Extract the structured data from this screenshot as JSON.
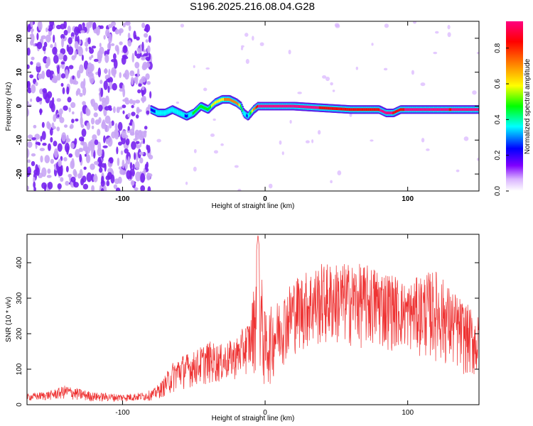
{
  "title": "S196.2025.216.08.04.G28",
  "chart_data": [
    {
      "type": "heatmap",
      "xlabel": "Height of straight line (km)",
      "ylabel": "Frequency (Hz)",
      "xlim": [
        -167,
        150
      ],
      "ylim": [
        -25,
        25
      ],
      "x_ticks": [
        -100,
        0,
        100
      ],
      "y_ticks": [
        -20,
        -10,
        0,
        10,
        20
      ],
      "colorbar": {
        "label": "Normalized spectral amplitude",
        "range": [
          0,
          0.95
        ],
        "ticks": [
          "0.0",
          "0.2",
          "0.4",
          "0.6",
          "0.8"
        ],
        "colors": [
          "#ffffff",
          "#d9b3ff",
          "#8000ff",
          "#0000ff",
          "#00ffff",
          "#00ff00",
          "#ffff00",
          "#ff8000",
          "#ff0000",
          "#ff0080"
        ]
      },
      "ridge": {
        "x": [
          -80,
          -75,
          -70,
          -65,
          -60,
          -55,
          -50,
          -45,
          -40,
          -35,
          -30,
          -25,
          -20,
          -17,
          -15,
          -12,
          -8,
          -5,
          0,
          10,
          20,
          40,
          60,
          75,
          80,
          85,
          90,
          95,
          100,
          110,
          120,
          130,
          140,
          150
        ],
        "y": [
          -1,
          -2,
          -2,
          -1,
          -2,
          -3,
          -2,
          0,
          -1,
          1,
          2,
          2,
          1,
          0,
          -2,
          -3,
          -1,
          0,
          0,
          0,
          0,
          -0.5,
          -1,
          -1,
          -1,
          -2,
          -2,
          -1,
          -1,
          -1,
          -1,
          -1,
          -1,
          -1
        ],
        "amplitude": [
          0.35,
          0.4,
          0.45,
          0.4,
          0.45,
          0.35,
          0.5,
          0.55,
          0.55,
          0.6,
          0.65,
          0.7,
          0.75,
          0.55,
          0.45,
          0.35,
          0.7,
          0.85,
          0.9,
          0.95,
          0.9,
          0.85,
          0.85,
          0.8,
          0.85,
          0.9,
          0.85,
          0.8,
          0.9,
          0.95,
          0.9,
          0.85,
          0.9,
          0.95
        ]
      }
    },
    {
      "type": "line",
      "xlabel": "Height of straight line (km)",
      "ylabel": "SNR (10 * v/v)",
      "xlim": [
        -167,
        150
      ],
      "ylim": [
        0,
        480
      ],
      "x_ticks": [
        -100,
        0,
        100
      ],
      "y_ticks": [
        0,
        100,
        200,
        300,
        400
      ],
      "series": [
        {
          "color": "#ee3333",
          "envelope_x": [
            -167,
            -150,
            -140,
            -130,
            -120,
            -100,
            -85,
            -78,
            -72,
            -65,
            -60,
            -50,
            -40,
            -30,
            -20,
            -10,
            -5,
            0,
            10,
            20,
            30,
            40,
            60,
            70,
            80,
            90,
            100,
            110,
            120,
            130,
            140,
            150
          ],
          "envelope_low": [
            10,
            12,
            15,
            10,
            8,
            8,
            10,
            12,
            20,
            30,
            40,
            50,
            55,
            60,
            70,
            90,
            80,
            30,
            100,
            140,
            150,
            160,
            160,
            155,
            150,
            150,
            150,
            130,
            120,
            100,
            80,
            60
          ],
          "envelope_high": [
            30,
            40,
            55,
            45,
            35,
            30,
            35,
            45,
            70,
            120,
            140,
            150,
            180,
            170,
            190,
            250,
            480,
            260,
            300,
            360,
            380,
            400,
            400,
            395,
            390,
            370,
            340,
            370,
            380,
            330,
            290,
            250
          ]
        }
      ]
    }
  ]
}
